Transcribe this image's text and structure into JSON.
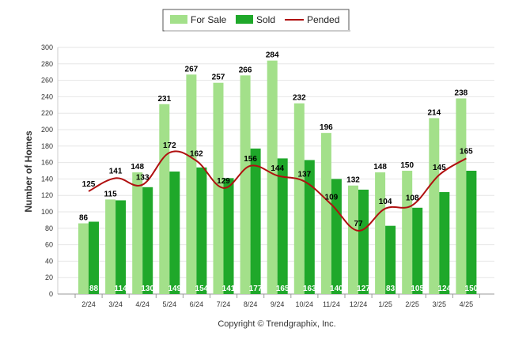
{
  "chart_data": {
    "type": "bar",
    "ylabel": "Number of Homes",
    "ylim": [
      0,
      300
    ],
    "yticks": [
      0,
      20,
      40,
      60,
      80,
      100,
      120,
      140,
      160,
      180,
      200,
      220,
      240,
      260,
      280,
      300
    ],
    "categories": [
      "2/24",
      "3/24",
      "4/24",
      "5/24",
      "6/24",
      "7/24",
      "8/24",
      "9/24",
      "10/24",
      "11/24",
      "12/24",
      "1/25",
      "2/25",
      "3/25",
      "4/25"
    ],
    "series": [
      {
        "name": "For Sale",
        "type": "bar",
        "color": "#a3e08a",
        "values": [
          86,
          115,
          148,
          231,
          267,
          257,
          266,
          284,
          232,
          196,
          132,
          148,
          150,
          214,
          238
        ]
      },
      {
        "name": "Sold",
        "type": "bar",
        "color": "#1fa82a",
        "values": [
          88,
          114,
          130,
          149,
          154,
          141,
          177,
          165,
          163,
          140,
          127,
          83,
          105,
          124,
          150
        ]
      },
      {
        "name": "Pended",
        "type": "line",
        "color": "#b01010",
        "values": [
          125,
          141,
          133,
          172,
          162,
          129,
          156,
          144,
          137,
          109,
          77,
          104,
          108,
          145,
          165
        ]
      }
    ],
    "legend_position": "top-center",
    "grid": true
  },
  "footer": {
    "copyright": "Copyright © Trendgraphix, Inc."
  }
}
